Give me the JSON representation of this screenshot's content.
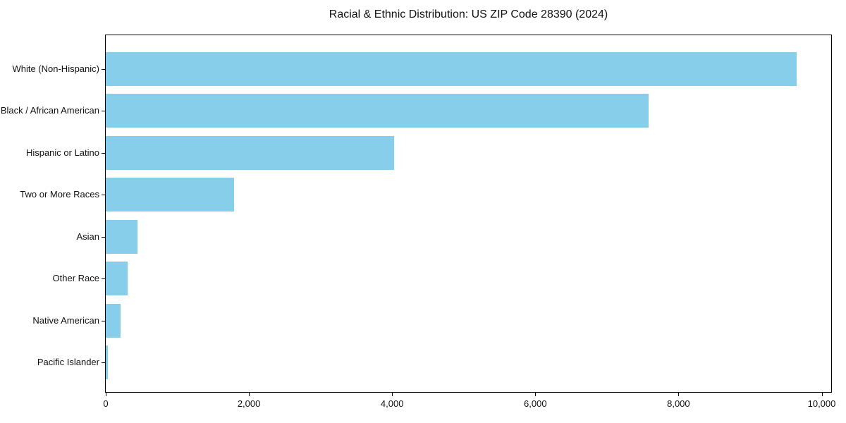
{
  "figure": {
    "background": "#ffffff"
  },
  "chart_data": {
    "type": "bar",
    "orientation": "horizontal",
    "title": "Racial & Ethnic Distribution: US ZIP Code 28390 (2024)",
    "xlabel": "",
    "ylabel": "",
    "categories": [
      "White (Non-Hispanic)",
      "Black / African American",
      "Hispanic or Latino",
      "Two or More Races",
      "Asian",
      "Other Race",
      "Native American",
      "Pacific Islander"
    ],
    "values": [
      9650,
      7580,
      4030,
      1790,
      440,
      305,
      205,
      30
    ],
    "xlim": [
      0,
      10133
    ],
    "xticks": [
      0,
      2000,
      4000,
      6000,
      8000,
      10000
    ],
    "xtick_labels": [
      "0",
      "2,000",
      "4,000",
      "6,000",
      "8,000",
      "10,000"
    ],
    "grid": false,
    "legend": null,
    "bar_color": "#87CEEB",
    "axis_color": "#000000",
    "text_color": "#111111"
  }
}
